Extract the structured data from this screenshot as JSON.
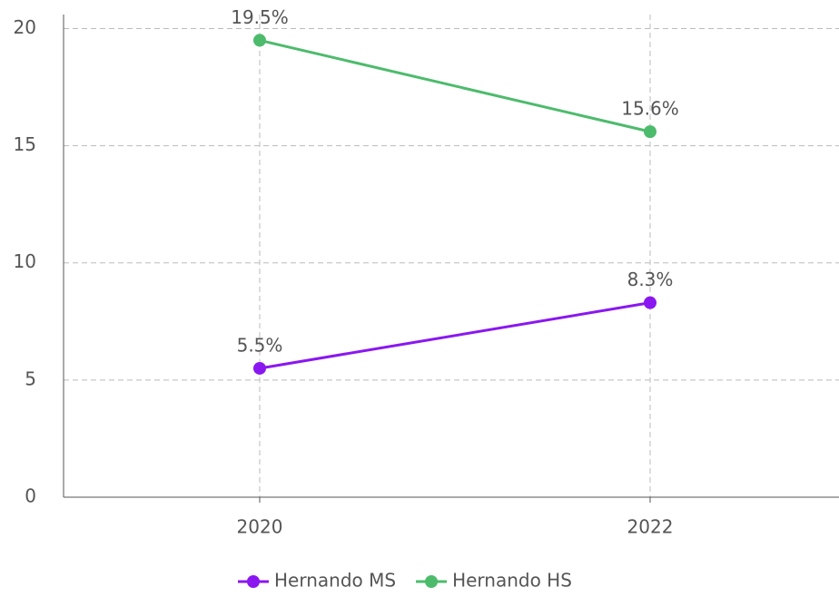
{
  "chart_data": {
    "type": "line",
    "categories": [
      "2020",
      "2022"
    ],
    "series": [
      {
        "name": "Hernando MS",
        "color": "#8a17f0",
        "values": [
          5.5,
          8.3
        ],
        "value_labels": [
          "5.5%",
          "8.3%"
        ]
      },
      {
        "name": "Hernando HS",
        "color": "#4dbb6c",
        "values": [
          19.5,
          15.6
        ],
        "value_labels": [
          "19.5%",
          "15.6%"
        ]
      }
    ],
    "ylim": [
      0,
      20.6
    ],
    "yticks": [
      0,
      5,
      10,
      15,
      20
    ],
    "grid": true,
    "legend": "bottom"
  }
}
